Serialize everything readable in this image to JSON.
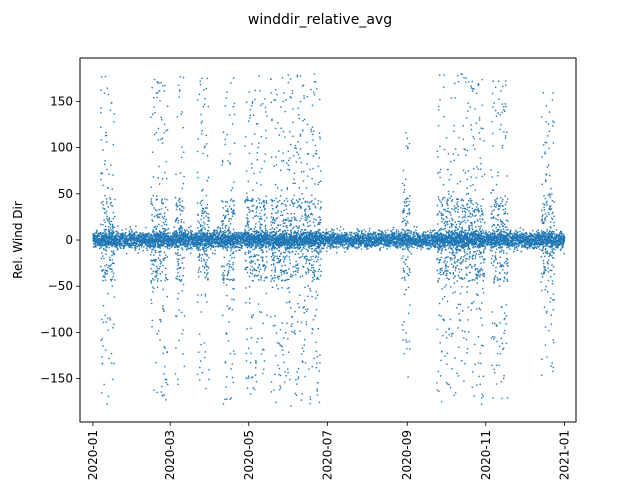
{
  "figure": {
    "title": "winddir_relative_avg"
  },
  "chart_data": {
    "type": "scatter",
    "title": "winddir_relative_avg",
    "xlabel": "",
    "ylabel": "Rel. Wind Dir",
    "x_axis": {
      "kind": "date",
      "range": [
        "2019-12-22",
        "2021-01-10"
      ],
      "tick_values": [
        "2020-01-01",
        "2020-03-01",
        "2020-05-01",
        "2020-07-01",
        "2020-09-01",
        "2020-11-01",
        "2021-01-01"
      ],
      "tick_labels": [
        "2020-01",
        "2020-03",
        "2020-05",
        "2020-07",
        "2020-09",
        "2020-11",
        "2021-01"
      ],
      "tick_label_rotation": "vertical"
    },
    "y_axis": {
      "range": [
        -197,
        197
      ],
      "tick_values": [
        -150,
        -100,
        -50,
        0,
        50,
        100,
        150
      ],
      "tick_labels": [
        "−150",
        "−100",
        "−50",
        "0",
        "50",
        "100",
        "150"
      ]
    },
    "grid": false,
    "legend": "none",
    "series_color": "#1f77b4",
    "data_span": [
      "2020-01-01",
      "2020-12-31"
    ],
    "core_band": {
      "typical_min": -8,
      "typical_max": 8
    },
    "bursts": [
      {
        "from": "2020-01-07",
        "to": "2020-01-18",
        "ymin": -180,
        "ymax": 180
      },
      {
        "from": "2020-02-15",
        "to": "2020-02-28",
        "ymin": -178,
        "ymax": 178
      },
      {
        "from": "2020-03-05",
        "to": "2020-03-12",
        "ymin": -175,
        "ymax": 178
      },
      {
        "from": "2020-03-22",
        "to": "2020-03-31",
        "ymin": -165,
        "ymax": 178
      },
      {
        "from": "2020-04-10",
        "to": "2020-04-20",
        "ymin": -180,
        "ymax": 180
      },
      {
        "from": "2020-04-28",
        "to": "2020-05-15",
        "ymin": -170,
        "ymax": 178
      },
      {
        "from": "2020-05-18",
        "to": "2020-06-26",
        "ymin": -180,
        "ymax": 180
      },
      {
        "from": "2020-08-28",
        "to": "2020-09-03",
        "ymin": -155,
        "ymax": 120
      },
      {
        "from": "2020-09-24",
        "to": "2020-10-31",
        "ymin": -180,
        "ymax": 180
      },
      {
        "from": "2020-11-05",
        "to": "2020-11-18",
        "ymin": -175,
        "ymax": 178
      },
      {
        "from": "2020-12-14",
        "to": "2020-12-24",
        "ymin": -148,
        "ymax": 160
      }
    ]
  }
}
